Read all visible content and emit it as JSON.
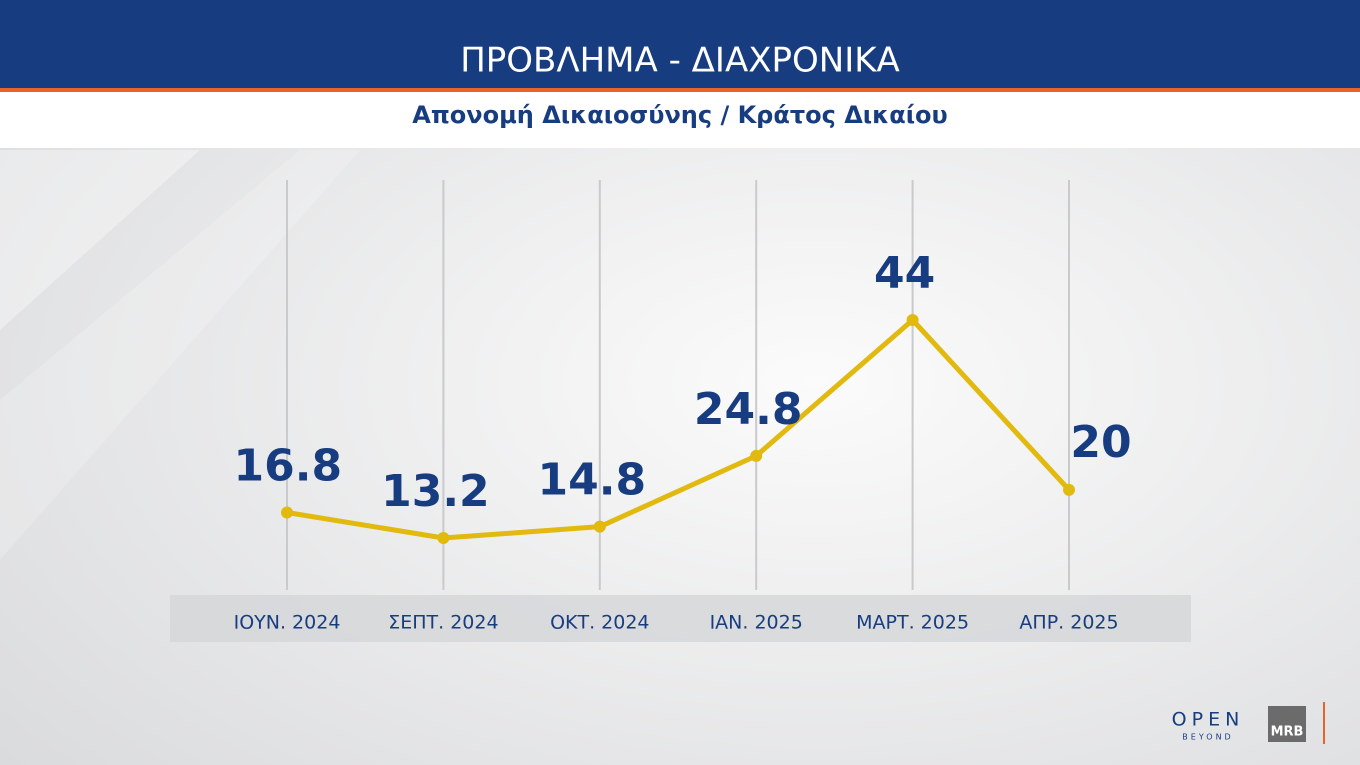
{
  "chart_data": {
    "type": "line",
    "title": "ΠΡΟΒΛΗΜΑ - ΔΙΑΧΡΟΝΙΚΑ",
    "subtitle": "Απονομή Δικαιοσύνης / Κράτος Δικαίου",
    "categories": [
      "ΙΟΥΝ. 2024",
      "ΣΕΠΤ. 2024",
      "ΟΚΤ. 2024",
      "ΙΑΝ. 2025",
      "ΜΑΡΤ. 2025",
      "ΑΠΡ. 2025"
    ],
    "values": [
      16.8,
      13.2,
      14.8,
      24.8,
      44,
      20
    ],
    "color": "#e2b90f",
    "grid": true
  },
  "footer": {
    "logo": "OPEN",
    "logo_tagline": "BEYOND",
    "badge": "MRB"
  }
}
